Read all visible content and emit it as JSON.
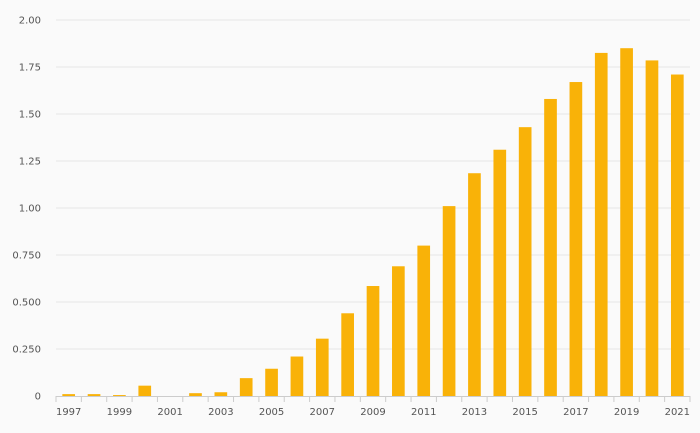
{
  "chart_data": {
    "type": "bar",
    "title": "",
    "xlabel": "",
    "ylabel": "",
    "categories": [
      "1997",
      "1998",
      "1999",
      "2000",
      "2001",
      "2002",
      "2003",
      "2004",
      "2005",
      "2006",
      "2007",
      "2008",
      "2009",
      "2010",
      "2011",
      "2012",
      "2013",
      "2014",
      "2015",
      "2016",
      "2017",
      "2018",
      "2019",
      "2020",
      "2021"
    ],
    "values": [
      0.01,
      0.01,
      0.005,
      0.055,
      0.0,
      0.015,
      0.02,
      0.095,
      0.145,
      0.21,
      0.305,
      0.44,
      0.585,
      0.69,
      0.8,
      1.01,
      1.185,
      1.31,
      1.43,
      1.58,
      1.67,
      1.825,
      1.85,
      1.785,
      1.71
    ],
    "x_tick_labels": [
      "1997",
      "1999",
      "2001",
      "2003",
      "2005",
      "2007",
      "2009",
      "2011",
      "2013",
      "2015",
      "2017",
      "2019",
      "2021"
    ],
    "y_ticks": [
      0,
      0.25,
      0.5,
      0.75,
      1.0,
      1.25,
      1.5,
      1.75,
      2.0
    ],
    "y_tick_labels": [
      "0",
      "0.250",
      "0.500",
      "0.750",
      "1.00",
      "1.25",
      "1.50",
      "1.75",
      "2.00"
    ],
    "ylim": [
      0,
      2.0
    ],
    "grid": true,
    "legend": "none",
    "bar_color": "#f9b208"
  }
}
